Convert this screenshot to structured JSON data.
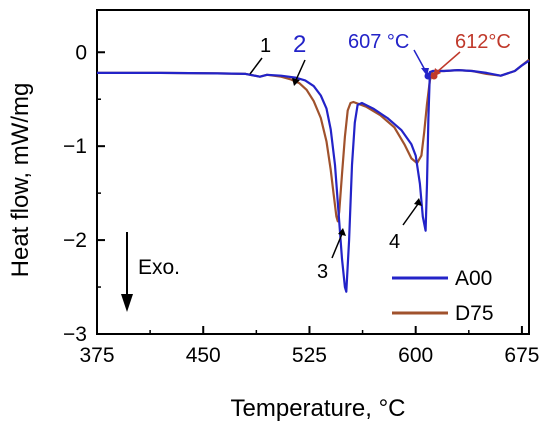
{
  "chart_data": {
    "type": "line",
    "xlabel": "Temperature, °C",
    "ylabel": "Heat flow, mW/mg",
    "xlim": [
      375,
      680
    ],
    "ylim": [
      -3,
      0.45
    ],
    "x_ticks": [
      375,
      450,
      525,
      600,
      675
    ],
    "y_ticks": [
      0,
      -1,
      -2,
      -3
    ],
    "x_tick_labels": [
      "375",
      "450",
      "525",
      "600",
      "675"
    ],
    "y_tick_labels": [
      "0",
      "−1",
      "−2",
      "−3"
    ],
    "grid": false,
    "legend_position": "bottom-right",
    "series": [
      {
        "name": "A00",
        "color": "#2323c8",
        "points": [
          [
            375,
            -0.22
          ],
          [
            420,
            -0.22
          ],
          [
            460,
            -0.225
          ],
          [
            480,
            -0.23
          ],
          [
            490,
            -0.26
          ],
          [
            495,
            -0.24
          ],
          [
            505,
            -0.25
          ],
          [
            515,
            -0.27
          ],
          [
            522,
            -0.3
          ],
          [
            528,
            -0.36
          ],
          [
            533,
            -0.46
          ],
          [
            537,
            -0.6
          ],
          [
            540,
            -0.82
          ],
          [
            543,
            -1.2
          ],
          [
            546,
            -1.8
          ],
          [
            548,
            -2.2
          ],
          [
            550,
            -2.5
          ],
          [
            551,
            -2.55
          ],
          [
            553,
            -2.0
          ],
          [
            555,
            -1.2
          ],
          [
            557,
            -0.75
          ],
          [
            559,
            -0.56
          ],
          [
            562,
            -0.54
          ],
          [
            570,
            -0.6
          ],
          [
            580,
            -0.7
          ],
          [
            590,
            -0.83
          ],
          [
            597,
            -0.98
          ],
          [
            600,
            -1.1
          ],
          [
            603,
            -1.4
          ],
          [
            605,
            -1.75
          ],
          [
            607,
            -1.9
          ],
          [
            608,
            -1.4
          ],
          [
            609,
            -0.7
          ],
          [
            610,
            -0.21
          ],
          [
            612,
            -0.2
          ],
          [
            620,
            -0.2
          ],
          [
            630,
            -0.19
          ],
          [
            640,
            -0.2
          ],
          [
            650,
            -0.22
          ],
          [
            660,
            -0.25
          ],
          [
            670,
            -0.2
          ],
          [
            675,
            -0.14
          ],
          [
            680,
            -0.09
          ]
        ]
      },
      {
        "name": "D75",
        "color": "#a0522d",
        "points": [
          [
            375,
            -0.22
          ],
          [
            420,
            -0.22
          ],
          [
            460,
            -0.225
          ],
          [
            480,
            -0.23
          ],
          [
            490,
            -0.26
          ],
          [
            495,
            -0.24
          ],
          [
            505,
            -0.26
          ],
          [
            512,
            -0.29
          ],
          [
            518,
            -0.33
          ],
          [
            523,
            -0.4
          ],
          [
            528,
            -0.52
          ],
          [
            533,
            -0.7
          ],
          [
            537,
            -0.95
          ],
          [
            540,
            -1.25
          ],
          [
            542,
            -1.5
          ],
          [
            544,
            -1.75
          ],
          [
            545,
            -1.8
          ],
          [
            546,
            -1.7
          ],
          [
            548,
            -1.3
          ],
          [
            550,
            -0.9
          ],
          [
            552,
            -0.62
          ],
          [
            554,
            -0.54
          ],
          [
            556,
            -0.53
          ],
          [
            565,
            -0.58
          ],
          [
            575,
            -0.67
          ],
          [
            585,
            -0.8
          ],
          [
            592,
            -0.98
          ],
          [
            597,
            -1.13
          ],
          [
            601,
            -1.18
          ],
          [
            604,
            -1.1
          ],
          [
            606,
            -0.85
          ],
          [
            608,
            -0.55
          ],
          [
            610,
            -0.3
          ],
          [
            612,
            -0.2
          ],
          [
            620,
            -0.2
          ],
          [
            630,
            -0.19
          ],
          [
            640,
            -0.2
          ],
          [
            650,
            -0.23
          ],
          [
            660,
            -0.25
          ],
          [
            670,
            -0.2
          ],
          [
            675,
            -0.14
          ],
          [
            680,
            -0.08
          ]
        ]
      }
    ],
    "annotations": {
      "peak1": "1",
      "peak2": "2",
      "peak3": "3",
      "peak4": "4",
      "temp_a00": "607 °C",
      "temp_d75": "612°C",
      "exo": "Exo."
    },
    "annotation_colors": {
      "peak1": "#000000",
      "peak2": "#2323c8",
      "peak3": "#000000",
      "peak4": "#000000",
      "temp_a00": "#2323c8",
      "temp_d75": "#c0392b"
    }
  }
}
